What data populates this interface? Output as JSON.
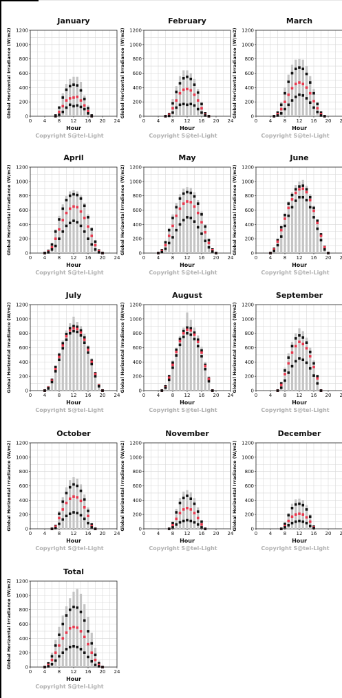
{
  "chart_data": [
    {
      "type": "bar",
      "title": "January",
      "xlabel": "Hour",
      "ylabel": "Global Horizontal Irradiance (W/m2)",
      "copyright": "Copyright S@tel-Light",
      "xlim": [
        0,
        24
      ],
      "ylim": [
        0,
        1200
      ],
      "xticks": [
        0,
        4,
        8,
        12,
        16,
        20,
        24
      ],
      "yticks": [
        0,
        200,
        400,
        600,
        800,
        1000,
        1200
      ],
      "hours": [
        7,
        8,
        9,
        10,
        11,
        12,
        13,
        14,
        15,
        16,
        17
      ],
      "max": [
        0,
        140,
        320,
        450,
        520,
        550,
        550,
        480,
        290,
        150,
        0
      ],
      "mean": [
        0,
        60,
        140,
        220,
        250,
        260,
        270,
        220,
        150,
        70,
        0
      ],
      "mean_high": [
        10,
        120,
        260,
        370,
        420,
        440,
        430,
        360,
        240,
        110,
        10
      ],
      "min": [
        0,
        20,
        60,
        120,
        160,
        140,
        150,
        130,
        100,
        40,
        0
      ]
    },
    {
      "type": "bar",
      "title": "February",
      "xlabel": "Hour",
      "ylabel": "Global Horizontal Irradiance (W/m2)",
      "copyright": "Copyright S@tel-Light",
      "xlim": [
        0,
        24
      ],
      "ylim": [
        0,
        1200
      ],
      "xticks": [
        0,
        4,
        8,
        12,
        16,
        20,
        24
      ],
      "yticks": [
        0,
        200,
        400,
        600,
        800,
        1000,
        1200
      ],
      "hours": [
        6,
        7,
        8,
        9,
        10,
        11,
        12,
        13,
        14,
        15,
        16,
        17,
        18
      ],
      "max": [
        0,
        40,
        240,
        420,
        560,
        640,
        640,
        600,
        520,
        380,
        200,
        50,
        0
      ],
      "mean": [
        0,
        20,
        110,
        220,
        320,
        370,
        380,
        360,
        300,
        220,
        110,
        20,
        0
      ],
      "mean_high": [
        0,
        30,
        180,
        340,
        460,
        530,
        550,
        520,
        440,
        330,
        170,
        40,
        0
      ],
      "min": [
        0,
        5,
        50,
        120,
        160,
        170,
        160,
        170,
        150,
        100,
        50,
        10,
        0
      ]
    },
    {
      "type": "bar",
      "title": "March",
      "xlabel": "Hour",
      "ylabel": "Global Horizontal Irradiance (W/m2)",
      "copyright": "Copyright S@tel-Light",
      "xlim": [
        0,
        24
      ],
      "ylim": [
        0,
        1200
      ],
      "xticks": [
        0,
        4,
        8,
        12,
        16,
        20,
        24
      ],
      "yticks": [
        0,
        200,
        400,
        600,
        800,
        1000,
        1200
      ],
      "hours": [
        5,
        6,
        7,
        8,
        9,
        10,
        11,
        12,
        13,
        14,
        15,
        16,
        17,
        18,
        19
      ],
      "max": [
        0,
        60,
        200,
        400,
        580,
        720,
        790,
        800,
        790,
        700,
        560,
        380,
        200,
        60,
        0
      ],
      "mean": [
        0,
        30,
        100,
        200,
        300,
        390,
        450,
        470,
        450,
        400,
        320,
        210,
        110,
        30,
        0
      ],
      "mean_high": [
        0,
        50,
        160,
        320,
        480,
        600,
        660,
        680,
        660,
        590,
        470,
        320,
        170,
        50,
        0
      ],
      "min": [
        0,
        10,
        40,
        100,
        160,
        220,
        270,
        300,
        290,
        250,
        190,
        120,
        60,
        10,
        0
      ]
    },
    {
      "type": "bar",
      "title": "April",
      "xlabel": "Hour",
      "ylabel": "Global Horizontal Irradiance (W/m2)",
      "copyright": "Copyright S@tel-Light",
      "xlim": [
        0,
        24
      ],
      "ylim": [
        0,
        1200
      ],
      "xticks": [
        0,
        4,
        8,
        12,
        16,
        20,
        24
      ],
      "yticks": [
        0,
        200,
        400,
        600,
        800,
        1000,
        1200
      ],
      "hours": [
        4,
        5,
        6,
        7,
        8,
        9,
        10,
        11,
        12,
        13,
        14,
        15,
        16,
        17,
        18,
        19,
        20
      ],
      "max": [
        0,
        30,
        130,
        330,
        520,
        680,
        800,
        860,
        880,
        860,
        810,
        700,
        540,
        360,
        170,
        40,
        0
      ],
      "mean": [
        0,
        20,
        80,
        200,
        330,
        460,
        560,
        620,
        650,
        640,
        580,
        490,
        370,
        240,
        110,
        25,
        0
      ],
      "mean_high": [
        0,
        30,
        120,
        300,
        470,
        620,
        740,
        800,
        820,
        810,
        760,
        660,
        500,
        330,
        160,
        35,
        0
      ],
      "min": [
        0,
        10,
        50,
        100,
        200,
        300,
        380,
        420,
        450,
        430,
        380,
        300,
        200,
        120,
        50,
        10,
        0
      ]
    },
    {
      "type": "bar",
      "title": "May",
      "xlabel": "Hour",
      "ylabel": "Global Horizontal Irradiance (W/m2)",
      "copyright": "Copyright S@tel-Light",
      "xlim": [
        0,
        24
      ],
      "ylim": [
        0,
        1200
      ],
      "xticks": [
        0,
        4,
        8,
        12,
        16,
        20,
        24
      ],
      "yticks": [
        0,
        200,
        400,
        600,
        800,
        1000,
        1200
      ],
      "hours": [
        4,
        5,
        6,
        7,
        8,
        9,
        10,
        11,
        12,
        13,
        14,
        15,
        16,
        17,
        18,
        19,
        20
      ],
      "max": [
        0,
        50,
        170,
        350,
        540,
        700,
        820,
        900,
        920,
        910,
        850,
        740,
        580,
        400,
        200,
        60,
        0
      ],
      "mean": [
        0,
        30,
        110,
        240,
        380,
        520,
        620,
        690,
        720,
        710,
        650,
        560,
        430,
        290,
        140,
        40,
        0
      ],
      "mean_high": [
        0,
        40,
        150,
        320,
        490,
        640,
        760,
        830,
        850,
        840,
        790,
        690,
        540,
        370,
        180,
        50,
        0
      ],
      "min": [
        0,
        15,
        60,
        140,
        220,
        320,
        400,
        460,
        500,
        490,
        440,
        360,
        270,
        170,
        80,
        20,
        0
      ]
    },
    {
      "type": "bar",
      "title": "June",
      "xlabel": "Hour",
      "ylabel": "Global Horizontal Irradiance (W/m2)",
      "copyright": "Copyright S@tel-Light",
      "xlim": [
        0,
        24
      ],
      "ylim": [
        0,
        1200
      ],
      "xticks": [
        0,
        4,
        8,
        12,
        16,
        20,
        24
      ],
      "yticks": [
        0,
        200,
        400,
        600,
        800,
        1000,
        1200
      ],
      "hours": [
        4,
        5,
        6,
        7,
        8,
        9,
        10,
        11,
        12,
        13,
        14,
        15,
        16,
        17,
        18,
        19,
        20
      ],
      "max": [
        0,
        70,
        200,
        380,
        560,
        720,
        850,
        950,
        1000,
        1020,
        940,
        820,
        660,
        470,
        270,
        90,
        0
      ],
      "mean": [
        0,
        50,
        160,
        320,
        480,
        630,
        750,
        840,
        890,
        900,
        850,
        740,
        590,
        420,
        240,
        80,
        0
      ],
      "mean_high": [
        0,
        60,
        180,
        360,
        530,
        690,
        810,
        890,
        930,
        940,
        890,
        780,
        630,
        450,
        260,
        85,
        0
      ],
      "min": [
        0,
        30,
        110,
        230,
        380,
        520,
        640,
        730,
        780,
        780,
        740,
        640,
        500,
        340,
        180,
        50,
        0
      ]
    },
    {
      "type": "bar",
      "title": "July",
      "xlabel": "Hour",
      "ylabel": "Global Horizontal Irradiance (W/m2)",
      "copyright": "Copyright S@tel-Light",
      "xlim": [
        0,
        24
      ],
      "ylim": [
        0,
        1200
      ],
      "xticks": [
        0,
        4,
        8,
        12,
        16,
        20,
        24
      ],
      "yticks": [
        0,
        200,
        400,
        600,
        800,
        1000,
        1200
      ],
      "hours": [
        4,
        5,
        6,
        7,
        8,
        9,
        10,
        11,
        12,
        13,
        14,
        15,
        16,
        17,
        18,
        19,
        20
      ],
      "max": [
        0,
        50,
        160,
        350,
        530,
        700,
        840,
        940,
        1030,
        960,
        900,
        790,
        630,
        450,
        260,
        80,
        0
      ],
      "mean": [
        0,
        40,
        140,
        300,
        470,
        630,
        760,
        840,
        870,
        860,
        810,
        710,
        570,
        400,
        230,
        70,
        0
      ],
      "mean_high": [
        0,
        45,
        150,
        330,
        500,
        660,
        790,
        870,
        900,
        890,
        840,
        740,
        600,
        420,
        240,
        75,
        0
      ],
      "min": [
        0,
        30,
        120,
        270,
        430,
        590,
        710,
        800,
        830,
        820,
        770,
        670,
        530,
        370,
        200,
        60,
        0
      ]
    },
    {
      "type": "bar",
      "title": "August",
      "xlabel": "Hour",
      "ylabel": "Global Horizontal Irradiance (W/m2)",
      "copyright": "Copyright S@tel-Light",
      "xlim": [
        0,
        24
      ],
      "ylim": [
        0,
        1200
      ],
      "xticks": [
        0,
        4,
        8,
        12,
        16,
        20,
        24
      ],
      "yticks": [
        0,
        200,
        400,
        600,
        800,
        1000,
        1200
      ],
      "hours": [
        5,
        6,
        7,
        8,
        9,
        10,
        11,
        12,
        13,
        14,
        15,
        16,
        17,
        18,
        19
      ],
      "max": [
        0,
        70,
        220,
        420,
        600,
        760,
        880,
        1090,
        990,
        880,
        770,
        610,
        400,
        200,
        0
      ],
      "mean": [
        0,
        50,
        180,
        360,
        540,
        690,
        800,
        850,
        840,
        780,
        680,
        530,
        340,
        160,
        0
      ],
      "mean_high": [
        0,
        60,
        200,
        390,
        570,
        720,
        830,
        880,
        870,
        810,
        710,
        560,
        360,
        170,
        0
      ],
      "min": [
        0,
        40,
        150,
        320,
        490,
        640,
        750,
        800,
        780,
        720,
        620,
        480,
        300,
        130,
        0
      ]
    },
    {
      "type": "bar",
      "title": "September",
      "xlabel": "Hour",
      "ylabel": "Global Horizontal Irradiance (W/m2)",
      "copyright": "Copyright S@tel-Light",
      "xlim": [
        0,
        24
      ],
      "ylim": [
        0,
        1200
      ],
      "xticks": [
        0,
        4,
        8,
        12,
        16,
        20,
        24
      ],
      "yticks": [
        0,
        200,
        400,
        600,
        800,
        1000,
        1200
      ],
      "hours": [
        6,
        7,
        8,
        9,
        10,
        11,
        12,
        13,
        14,
        15,
        16,
        17,
        18
      ],
      "max": [
        0,
        120,
        320,
        520,
        680,
        800,
        870,
        830,
        740,
        600,
        420,
        220,
        0
      ],
      "mean": [
        0,
        80,
        230,
        380,
        530,
        620,
        680,
        650,
        590,
        480,
        330,
        170,
        0
      ],
      "mean_high": [
        0,
        100,
        280,
        460,
        620,
        730,
        770,
        740,
        670,
        540,
        380,
        200,
        0
      ],
      "min": [
        0,
        40,
        140,
        250,
        340,
        410,
        450,
        430,
        390,
        310,
        210,
        100,
        0
      ]
    },
    {
      "type": "bar",
      "title": "October",
      "xlabel": "Hour",
      "ylabel": "Global Horizontal Irradiance (W/m2)",
      "copyright": "Copyright S@tel-Light",
      "xlim": [
        0,
        24
      ],
      "ylim": [
        0,
        1200
      ],
      "xticks": [
        0,
        4,
        8,
        12,
        16,
        20,
        24
      ],
      "yticks": [
        0,
        200,
        400,
        600,
        800,
        1000,
        1200
      ],
      "hours": [
        6,
        7,
        8,
        9,
        10,
        11,
        12,
        13,
        14,
        15,
        16,
        17,
        18
      ],
      "max": [
        0,
        50,
        250,
        440,
        580,
        680,
        720,
        700,
        620,
        480,
        300,
        80,
        0
      ],
      "mean": [
        0,
        30,
        150,
        270,
        360,
        420,
        450,
        440,
        390,
        300,
        180,
        40,
        0
      ],
      "mean_high": [
        0,
        40,
        210,
        380,
        500,
        580,
        620,
        600,
        530,
        410,
        250,
        60,
        0
      ],
      "min": [
        0,
        10,
        70,
        130,
        180,
        210,
        230,
        220,
        190,
        140,
        80,
        20,
        0
      ]
    },
    {
      "type": "bar",
      "title": "November",
      "xlabel": "Hour",
      "ylabel": "Global Horizontal Irradiance (W/m2)",
      "copyright": "Copyright S@tel-Light",
      "xlim": [
        0,
        24
      ],
      "ylim": [
        0,
        1200
      ],
      "xticks": [
        0,
        4,
        8,
        12,
        16,
        20,
        24
      ],
      "yticks": [
        0,
        200,
        400,
        600,
        800,
        1000,
        1200
      ],
      "hours": [
        7,
        8,
        9,
        10,
        11,
        12,
        13,
        14,
        15,
        16,
        17
      ],
      "max": [
        0,
        100,
        280,
        430,
        520,
        540,
        510,
        430,
        300,
        120,
        0
      ],
      "mean": [
        0,
        50,
        140,
        220,
        270,
        290,
        270,
        220,
        150,
        60,
        0
      ],
      "mean_high": [
        0,
        80,
        230,
        360,
        430,
        460,
        420,
        350,
        240,
        100,
        0
      ],
      "min": [
        0,
        20,
        60,
        90,
        110,
        120,
        110,
        90,
        60,
        20,
        0
      ]
    },
    {
      "type": "bar",
      "title": "December",
      "xlabel": "Hour",
      "ylabel": "Global Horizontal Irradiance (W/m2)",
      "copyright": "Copyright S@tel-Light",
      "xlim": [
        0,
        24
      ],
      "ylim": [
        0,
        1200
      ],
      "xticks": [
        0,
        4,
        8,
        12,
        16,
        20,
        24
      ],
      "yticks": [
        0,
        200,
        400,
        600,
        800,
        1000,
        1200
      ],
      "hours": [
        7,
        8,
        9,
        10,
        11,
        12,
        13,
        14,
        15,
        16
      ],
      "max": [
        0,
        80,
        220,
        350,
        410,
        420,
        400,
        330,
        200,
        40
      ],
      "mean": [
        0,
        40,
        110,
        170,
        200,
        210,
        200,
        160,
        100,
        20
      ],
      "mean_high": [
        0,
        70,
        190,
        290,
        340,
        350,
        330,
        270,
        170,
        30
      ],
      "min": [
        0,
        20,
        50,
        80,
        100,
        110,
        100,
        80,
        40,
        10
      ]
    },
    {
      "type": "bar",
      "title": "Total",
      "xlabel": "Hour",
      "ylabel": "Global Horizontal Irradiance (W/m2)",
      "copyright": "Copyright S@tel-Light",
      "xlim": [
        0,
        24
      ],
      "ylim": [
        0,
        1200
      ],
      "xticks": [
        0,
        4,
        8,
        12,
        16,
        20,
        24
      ],
      "yticks": [
        0,
        200,
        400,
        600,
        800,
        1000,
        1200
      ],
      "hours": [
        4,
        5,
        6,
        7,
        8,
        9,
        10,
        11,
        12,
        13,
        14,
        15,
        16,
        17,
        18,
        19,
        20
      ],
      "max": [
        0,
        70,
        200,
        380,
        560,
        720,
        850,
        960,
        1050,
        1090,
        1020,
        880,
        700,
        480,
        270,
        90,
        0
      ],
      "mean": [
        0,
        30,
        100,
        200,
        300,
        400,
        480,
        540,
        560,
        550,
        500,
        420,
        320,
        200,
        100,
        30,
        0
      ],
      "mean_high": [
        0,
        50,
        150,
        300,
        450,
        600,
        720,
        800,
        840,
        830,
        770,
        650,
        500,
        330,
        170,
        50,
        0
      ],
      "min": [
        0,
        10,
        40,
        90,
        150,
        200,
        250,
        280,
        290,
        280,
        250,
        200,
        140,
        80,
        30,
        10,
        0
      ]
    }
  ]
}
